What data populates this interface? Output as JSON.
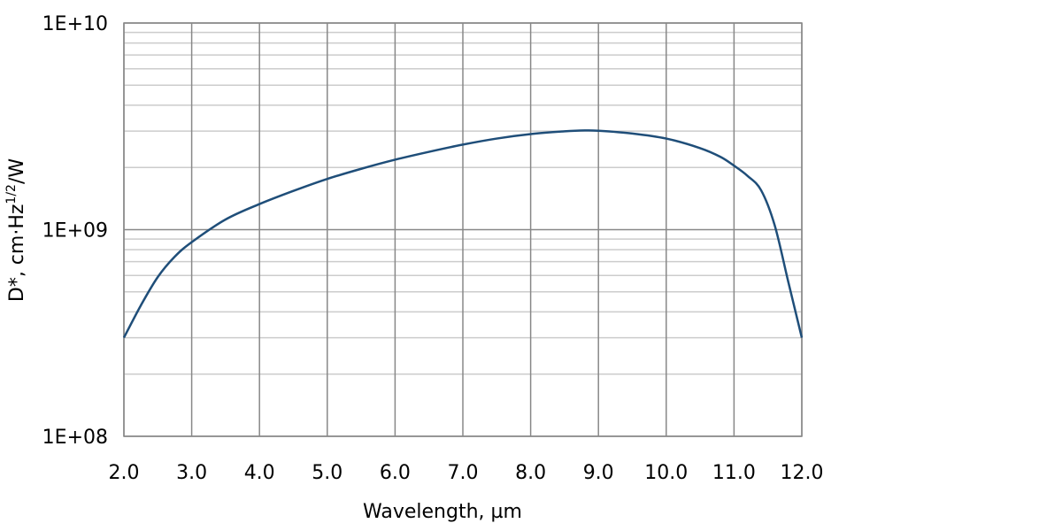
{
  "chart_data": {
    "type": "line",
    "title": "",
    "xlabel": "Wavelength, µm",
    "ylabel": {
      "prefix": "D*, cm·Hz",
      "superscript": "1/2",
      "suffix": "/W"
    },
    "y_scale": "log",
    "xlim": [
      2.0,
      12.0
    ],
    "ylim": [
      100000000,
      10000000000
    ],
    "x_ticks": [
      2,
      3,
      4,
      5,
      6,
      7,
      8,
      9,
      10,
      11,
      12
    ],
    "x_tick_labels": [
      "2.0",
      "3.0",
      "4.0",
      "5.0",
      "6.0",
      "7.0",
      "8.0",
      "9.0",
      "10.0",
      "11.0",
      "12.0"
    ],
    "y_ticks": [
      100000000,
      1000000000,
      10000000000
    ],
    "y_tick_labels": [
      "1E+08",
      "1E+09",
      "1E+10"
    ],
    "grid": true,
    "series": [
      {
        "name": "D*",
        "color": "#1f4e79",
        "x": [
          2.0,
          2.25,
          2.5,
          2.75,
          3.0,
          3.5,
          4.0,
          4.5,
          5.0,
          5.5,
          6.0,
          6.5,
          7.0,
          7.5,
          8.0,
          8.5,
          8.8,
          9.0,
          9.5,
          10.0,
          10.5,
          10.8,
          11.0,
          11.2,
          11.4,
          11.6,
          11.8,
          12.0
        ],
        "y": [
          300000000,
          430000000,
          590000000,
          740000000,
          870000000,
          1120000000,
          1330000000,
          1540000000,
          1760000000,
          1970000000,
          2180000000,
          2380000000,
          2580000000,
          2760000000,
          2900000000,
          2990000000,
          3020000000,
          3010000000,
          2920000000,
          2760000000,
          2480000000,
          2250000000,
          2040000000,
          1820000000,
          1550000000,
          1050000000,
          560000000,
          300000000
        ]
      }
    ]
  },
  "colors": {
    "line": "#1f4e79",
    "major_grid": "#888888",
    "minor_grid": "#cccccc",
    "frame": "#888888"
  }
}
